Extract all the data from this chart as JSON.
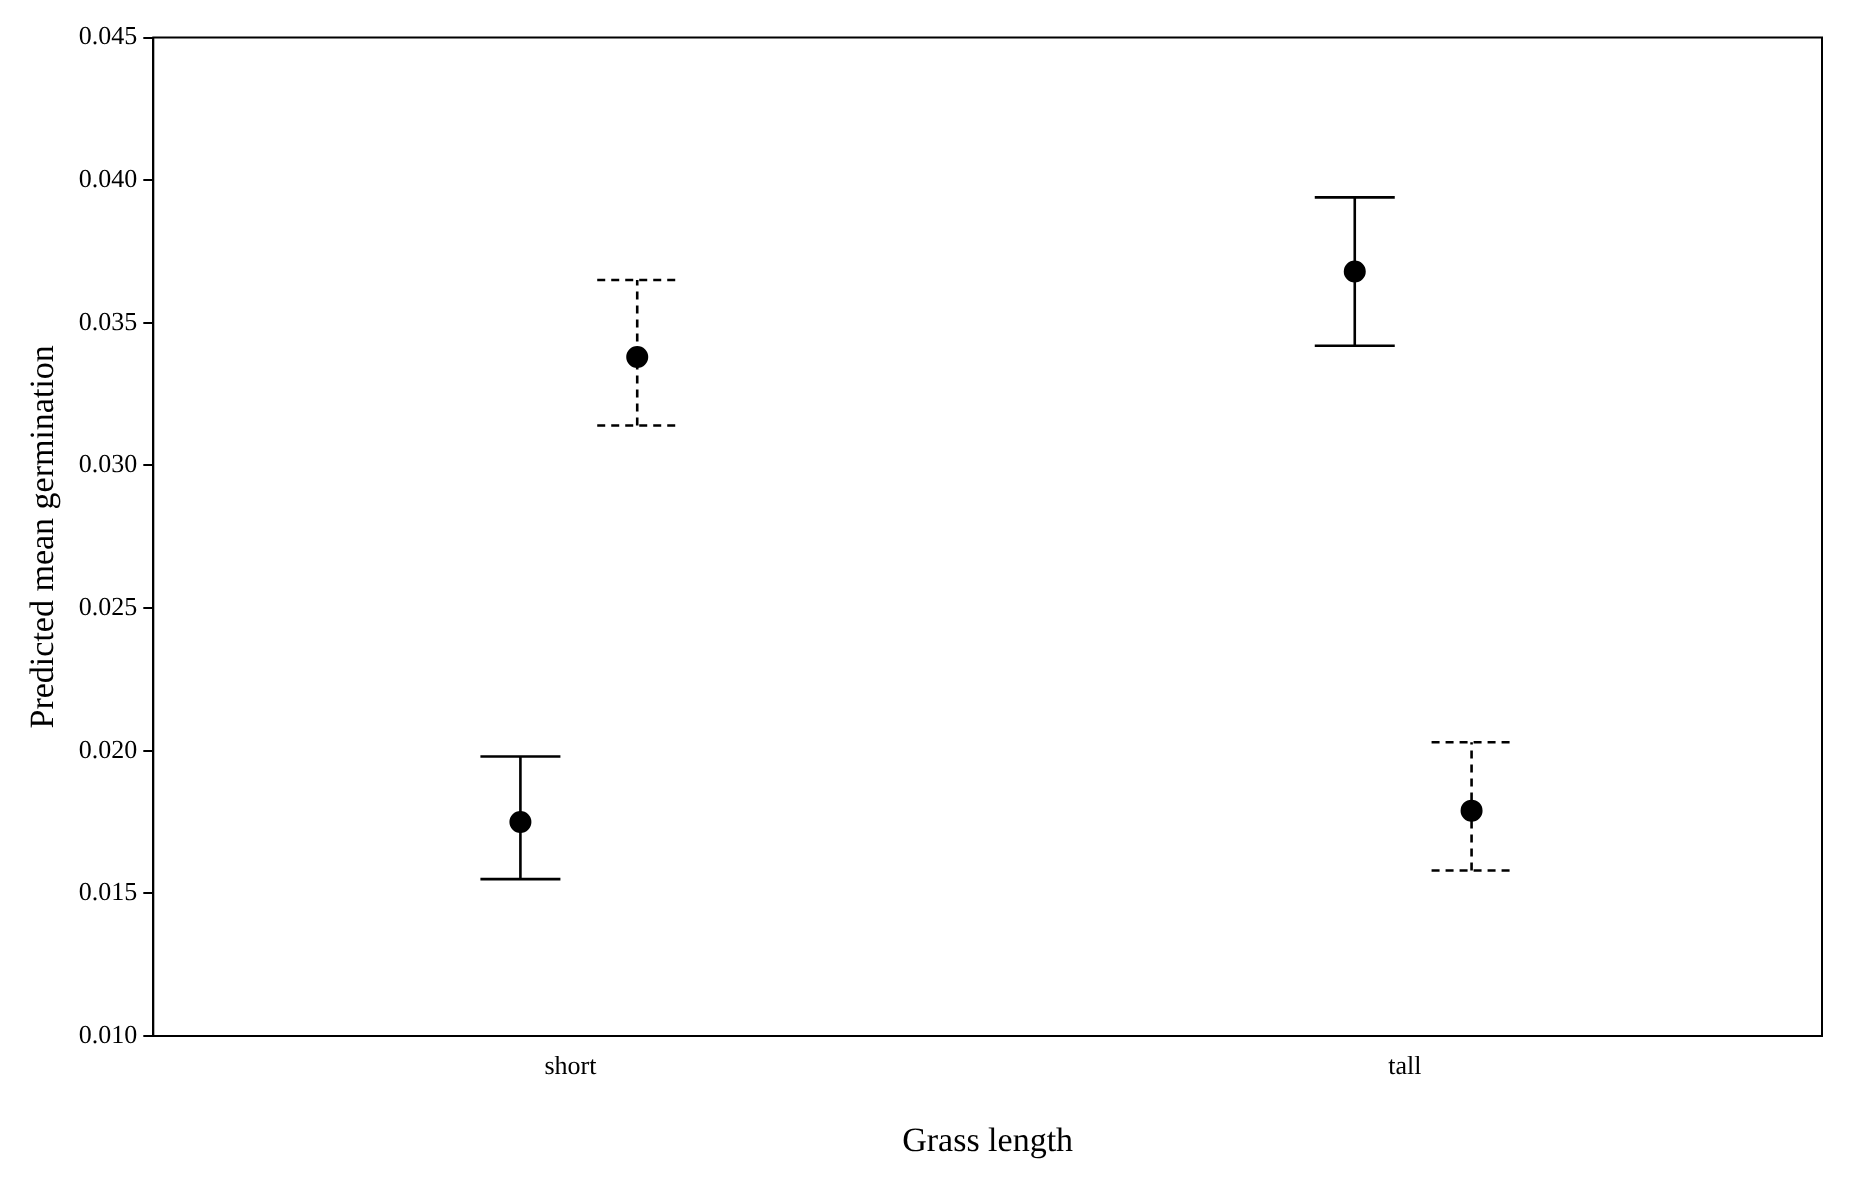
{
  "chart_data": {
    "type": "scatter",
    "xlabel": "Grass length",
    "ylabel": "Predicted mean germination",
    "categories": [
      "short",
      "tall"
    ],
    "series": [
      {
        "color": "#000000",
        "values": [
          0.0175,
          0.0368
        ],
        "errors": [
          [
            0.0155,
            0.0198
          ],
          [
            0.0342,
            0.0394
          ]
        ],
        "line_style": "solid"
      },
      {
        "color": "#000000",
        "values": [
          0.0338,
          0.0179
        ],
        "errors": [
          [
            0.0314,
            0.0365
          ],
          [
            0.0158,
            0.0203
          ]
        ],
        "line_style": "dashed"
      }
    ],
    "ylim": [
      0.01,
      0.045
    ],
    "yticks": [
      {
        "value": 0.01,
        "label": "0.010"
      },
      0.015,
      {
        "value": 0.02,
        "label": "0.020"
      },
      0.025,
      {
        "value": 0.03,
        "label": "0.030"
      },
      0.035,
      {
        "value": 0.04,
        "label": "0.040"
      },
      0.045
    ],
    "grid": false,
    "legend": false,
    "marker": "circle"
  }
}
